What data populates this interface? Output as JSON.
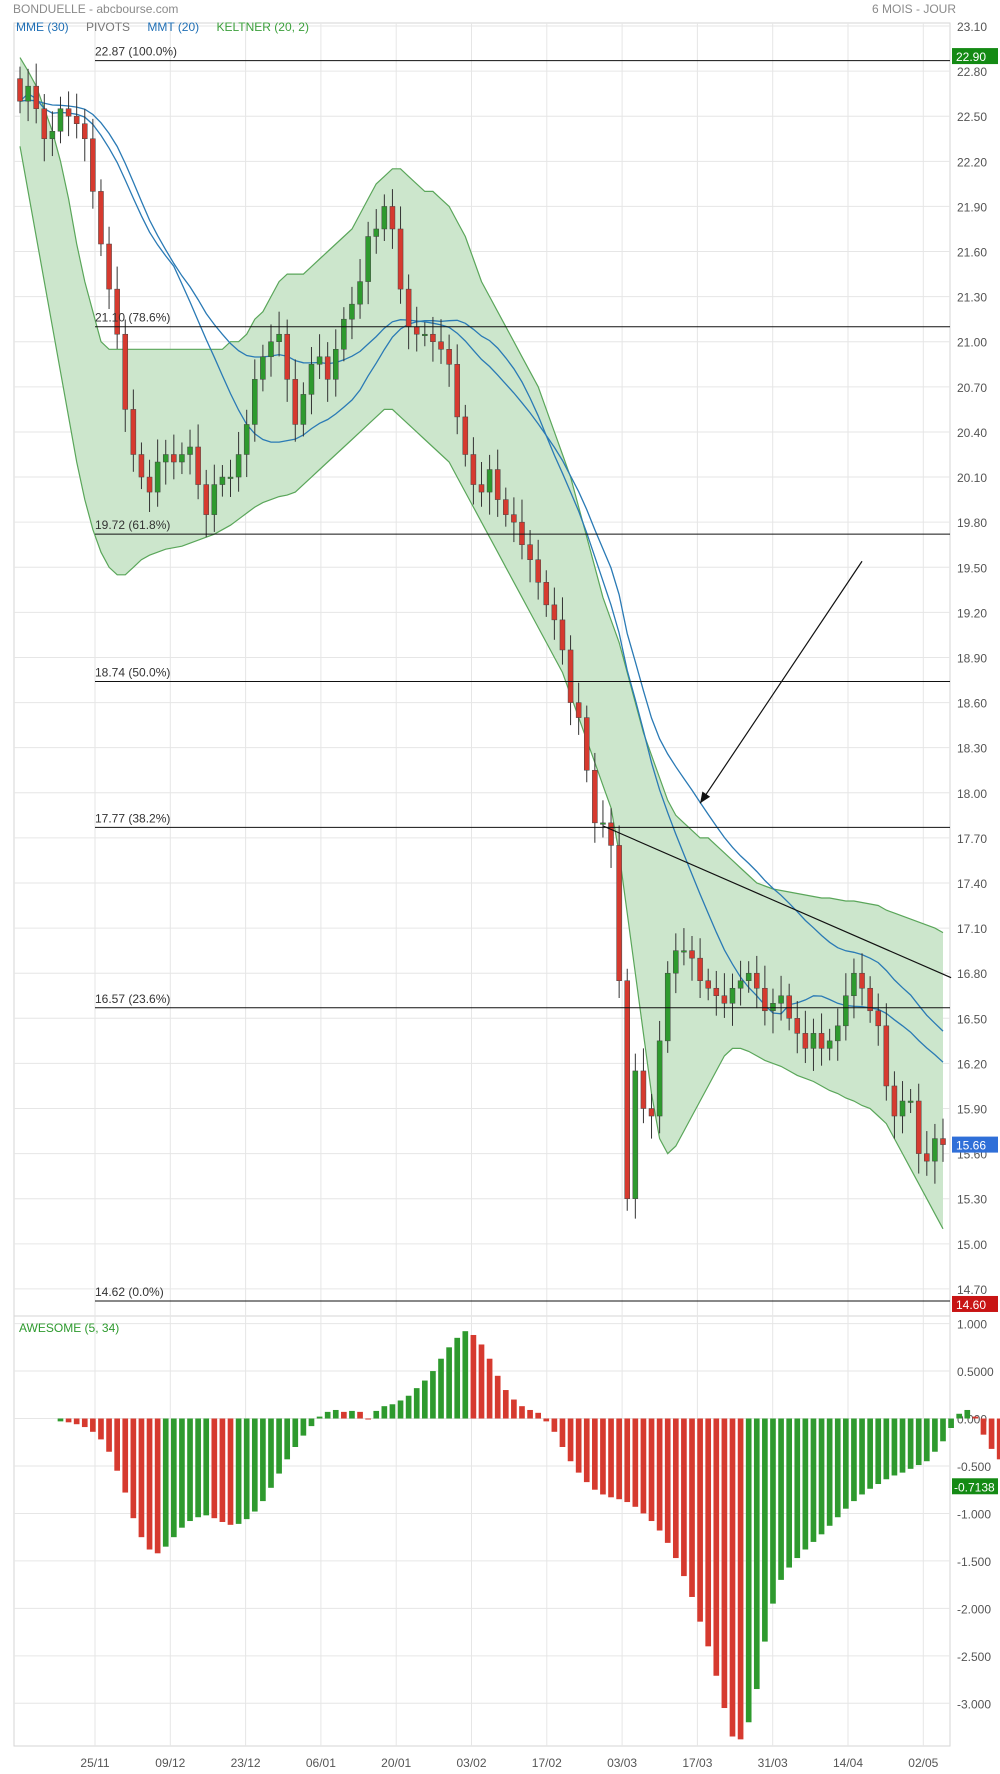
{
  "header": {
    "title": "BONDUELLE - abcbourse.com",
    "period": "6 MOIS - JOUR"
  },
  "legend": [
    {
      "label": "MME (30)",
      "color": "#1f6fb5"
    },
    {
      "label": "PIVOTS",
      "color": "#777777"
    },
    {
      "label": "MMT (20)",
      "color": "#1f6fb5"
    },
    {
      "label": "KELTNER (20, 2)",
      "color": "#3ca03c"
    }
  ],
  "colors": {
    "up": "#2e9a2e",
    "down": "#d63a2f",
    "keltner_fill": "#cce6cc",
    "keltner_line": "#5aa65a",
    "ma": "#2a7ab5"
  },
  "chart_data": [
    {
      "type": "candlestick",
      "title": "BONDUELLE",
      "x_ticks": [
        "25/11",
        "09/12",
        "23/12",
        "06/01",
        "20/01",
        "03/02",
        "17/02",
        "03/03",
        "17/03",
        "31/03",
        "14/04",
        "02/05"
      ],
      "ylim": [
        14.52,
        23.12
      ],
      "y_ticks": [
        "23.10",
        "22.80",
        "22.50",
        "22.20",
        "21.90",
        "21.60",
        "21.30",
        "21.00",
        "20.70",
        "20.40",
        "20.10",
        "19.80",
        "19.50",
        "19.20",
        "18.90",
        "18.60",
        "18.30",
        "18.00",
        "17.70",
        "17.40",
        "17.10",
        "16.80",
        "16.50",
        "16.20",
        "15.90",
        "15.60",
        "15.30",
        "15.00",
        "14.70"
      ],
      "badges": [
        {
          "value": "22.90",
          "price": 22.9,
          "color": "#148a14"
        },
        {
          "value": "15.66",
          "price": 15.66,
          "color": "#2f6fd8"
        },
        {
          "value": "14.60",
          "price": 14.6,
          "color": "#c81414"
        }
      ],
      "fibonacci": [
        {
          "label": "22.87  (100.0%)",
          "price": 22.87
        },
        {
          "label": "21.10  (78.6%)",
          "price": 21.1
        },
        {
          "label": "19.72  (61.8%)",
          "price": 19.72
        },
        {
          "label": "18.74  (50.0%)",
          "price": 18.74
        },
        {
          "label": "17.77  (38.2%)",
          "price": 17.77
        },
        {
          "label": "16.57  (23.6%)",
          "price": 16.57
        },
        {
          "label": "14.62  (0.0%)",
          "price": 14.62
        }
      ],
      "close": [
        22.6,
        22.7,
        22.55,
        22.35,
        22.4,
        22.55,
        22.5,
        22.45,
        22.35,
        22.0,
        21.65,
        21.35,
        21.05,
        20.55,
        20.25,
        20.1,
        20.0,
        20.2,
        20.25,
        20.2,
        20.25,
        20.3,
        20.05,
        19.85,
        20.05,
        20.1,
        20.1,
        20.25,
        20.45,
        20.75,
        20.9,
        21.0,
        21.05,
        20.75,
        20.45,
        20.65,
        20.85,
        20.9,
        20.75,
        20.95,
        21.15,
        21.25,
        21.4,
        21.7,
        21.75,
        21.9,
        21.75,
        21.35,
        21.1,
        21.05,
        21.05,
        21.0,
        20.95,
        20.85,
        20.5,
        20.25,
        20.05,
        20.0,
        20.15,
        19.95,
        19.85,
        19.8,
        19.65,
        19.55,
        19.4,
        19.25,
        19.15,
        18.95,
        18.6,
        18.5,
        18.15,
        17.8,
        17.8,
        17.65,
        16.75,
        15.3,
        16.15,
        15.9,
        15.85,
        16.35,
        16.8,
        16.95,
        16.95,
        16.9,
        16.75,
        16.7,
        16.65,
        16.6,
        16.7,
        16.75,
        16.8,
        16.7,
        16.55,
        16.6,
        16.65,
        16.5,
        16.4,
        16.3,
        16.4,
        16.3,
        16.35,
        16.45,
        16.65,
        16.8,
        16.7,
        16.55,
        16.45,
        16.05,
        15.85,
        15.95,
        15.95,
        15.6,
        15.55,
        15.7,
        15.66
      ],
      "keltner_upper": [
        22.89,
        22.8,
        22.7,
        22.55,
        22.4,
        22.2,
        21.95,
        21.65,
        21.4,
        21.2,
        21.0,
        20.95,
        20.95,
        20.95,
        20.95,
        20.95,
        20.95,
        20.95,
        20.95,
        20.95,
        20.95,
        20.95,
        20.95,
        20.95,
        20.95,
        20.95,
        21.0,
        21.0,
        21.05,
        21.15,
        21.2,
        21.3,
        21.4,
        21.45,
        21.45,
        21.45,
        21.5,
        21.55,
        21.6,
        21.65,
        21.7,
        21.75,
        21.85,
        21.95,
        22.05,
        22.1,
        22.15,
        22.15,
        22.1,
        22.05,
        22.0,
        22.0,
        21.95,
        21.9,
        21.8,
        21.7,
        21.55,
        21.4,
        21.3,
        21.2,
        21.1,
        21.0,
        20.9,
        20.8,
        20.7,
        20.55,
        20.4,
        20.25,
        20.1,
        19.9,
        19.7,
        19.5,
        19.3,
        19.15,
        19.0,
        18.8,
        18.6,
        18.4,
        18.25,
        18.1,
        17.95,
        17.85,
        17.8,
        17.75,
        17.7,
        17.7,
        17.65,
        17.6,
        17.55,
        17.5,
        17.45,
        17.4,
        17.38,
        17.36,
        17.35,
        17.34,
        17.33,
        17.32,
        17.31,
        17.3,
        17.3,
        17.29,
        17.28,
        17.28,
        17.27,
        17.26,
        17.25,
        17.22,
        17.2,
        17.18,
        17.16,
        17.14,
        17.12,
        17.1,
        17.07
      ],
      "keltner_lower": [
        22.3,
        22.0,
        21.7,
        21.4,
        21.1,
        20.8,
        20.5,
        20.2,
        19.95,
        19.75,
        19.6,
        19.5,
        19.45,
        19.45,
        19.5,
        19.55,
        19.58,
        19.6,
        19.62,
        19.63,
        19.64,
        19.66,
        19.68,
        19.7,
        19.72,
        19.75,
        19.78,
        19.82,
        19.86,
        19.9,
        19.93,
        19.95,
        19.97,
        19.98,
        20.0,
        20.05,
        20.1,
        20.15,
        20.2,
        20.25,
        20.3,
        20.35,
        20.4,
        20.45,
        20.5,
        20.55,
        20.55,
        20.5,
        20.45,
        20.4,
        20.35,
        20.3,
        20.25,
        20.2,
        20.1,
        20.0,
        19.9,
        19.8,
        19.7,
        19.6,
        19.5,
        19.4,
        19.3,
        19.2,
        19.1,
        19.0,
        18.9,
        18.8,
        18.65,
        18.5,
        18.35,
        18.2,
        18.05,
        17.9,
        17.6,
        17.2,
        16.8,
        16.4,
        16.0,
        15.7,
        15.6,
        15.65,
        15.75,
        15.85,
        15.95,
        16.05,
        16.15,
        16.25,
        16.3,
        16.3,
        16.28,
        16.25,
        16.22,
        16.2,
        16.18,
        16.15,
        16.12,
        16.1,
        16.08,
        16.05,
        16.02,
        16.0,
        15.97,
        15.95,
        15.92,
        15.9,
        15.85,
        15.8,
        15.7,
        15.6,
        15.5,
        15.4,
        15.3,
        15.2,
        15.1
      ],
      "trendline": {
        "from": [
          72,
          17.78
        ],
        "to": [
          115,
          16.77
        ]
      },
      "annotation_arrow": {
        "from": [
          104,
          19.54
        ],
        "to": [
          84,
          17.93
        ]
      }
    },
    {
      "type": "bar",
      "title": "AWESOME (5, 34)",
      "ylim": [
        -3.45,
        1.08
      ],
      "y_ticks": [
        "1.000",
        "0.5000",
        "0.000",
        "-0.500",
        "-1.000",
        "-1.500",
        "-2.000",
        "-2.500",
        "-3.000"
      ],
      "badge": {
        "value": "-0.7138",
        "price": -0.7138,
        "color": "#148a14"
      },
      "start_index": 5,
      "values": [
        -0.03,
        -0.04,
        -0.06,
        -0.09,
        -0.14,
        -0.22,
        -0.35,
        -0.55,
        -0.78,
        -1.05,
        -1.25,
        -1.38,
        -1.42,
        -1.35,
        -1.25,
        -1.15,
        -1.08,
        -1.04,
        -1.02,
        -1.05,
        -1.09,
        -1.12,
        -1.11,
        -1.06,
        -0.98,
        -0.87,
        -0.73,
        -0.58,
        -0.43,
        -0.3,
        -0.18,
        -0.08,
        0.02,
        0.07,
        0.09,
        0.07,
        0.08,
        0.07,
        0.0,
        0.08,
        0.13,
        0.15,
        0.19,
        0.24,
        0.32,
        0.4,
        0.5,
        0.63,
        0.75,
        0.85,
        0.92,
        0.88,
        0.78,
        0.63,
        0.45,
        0.3,
        0.2,
        0.13,
        0.09,
        0.06,
        -0.03,
        -0.14,
        -0.3,
        -0.45,
        -0.57,
        -0.67,
        -0.75,
        -0.8,
        -0.83,
        -0.85,
        -0.88,
        -0.93,
        -1.0,
        -1.08,
        -1.18,
        -1.31,
        -1.47,
        -1.66,
        -1.88,
        -2.14,
        -2.4,
        -2.71,
        -3.05,
        -3.35,
        -3.38,
        -3.2,
        -2.85,
        -2.35,
        -1.95,
        -1.7,
        -1.57,
        -1.47,
        -1.38,
        -1.3,
        -1.22,
        -1.13,
        -1.04,
        -0.95,
        -0.87,
        -0.8,
        -0.74,
        -0.69,
        -0.64,
        -0.6,
        -0.57,
        -0.53,
        -0.49,
        -0.45,
        -0.35,
        -0.24,
        -0.1,
        0.05,
        0.09,
        0.02,
        -0.17,
        -0.32,
        -0.43,
        -0.5,
        -0.55,
        -0.58,
        -0.62,
        -0.65,
        -0.7138
      ]
    }
  ]
}
